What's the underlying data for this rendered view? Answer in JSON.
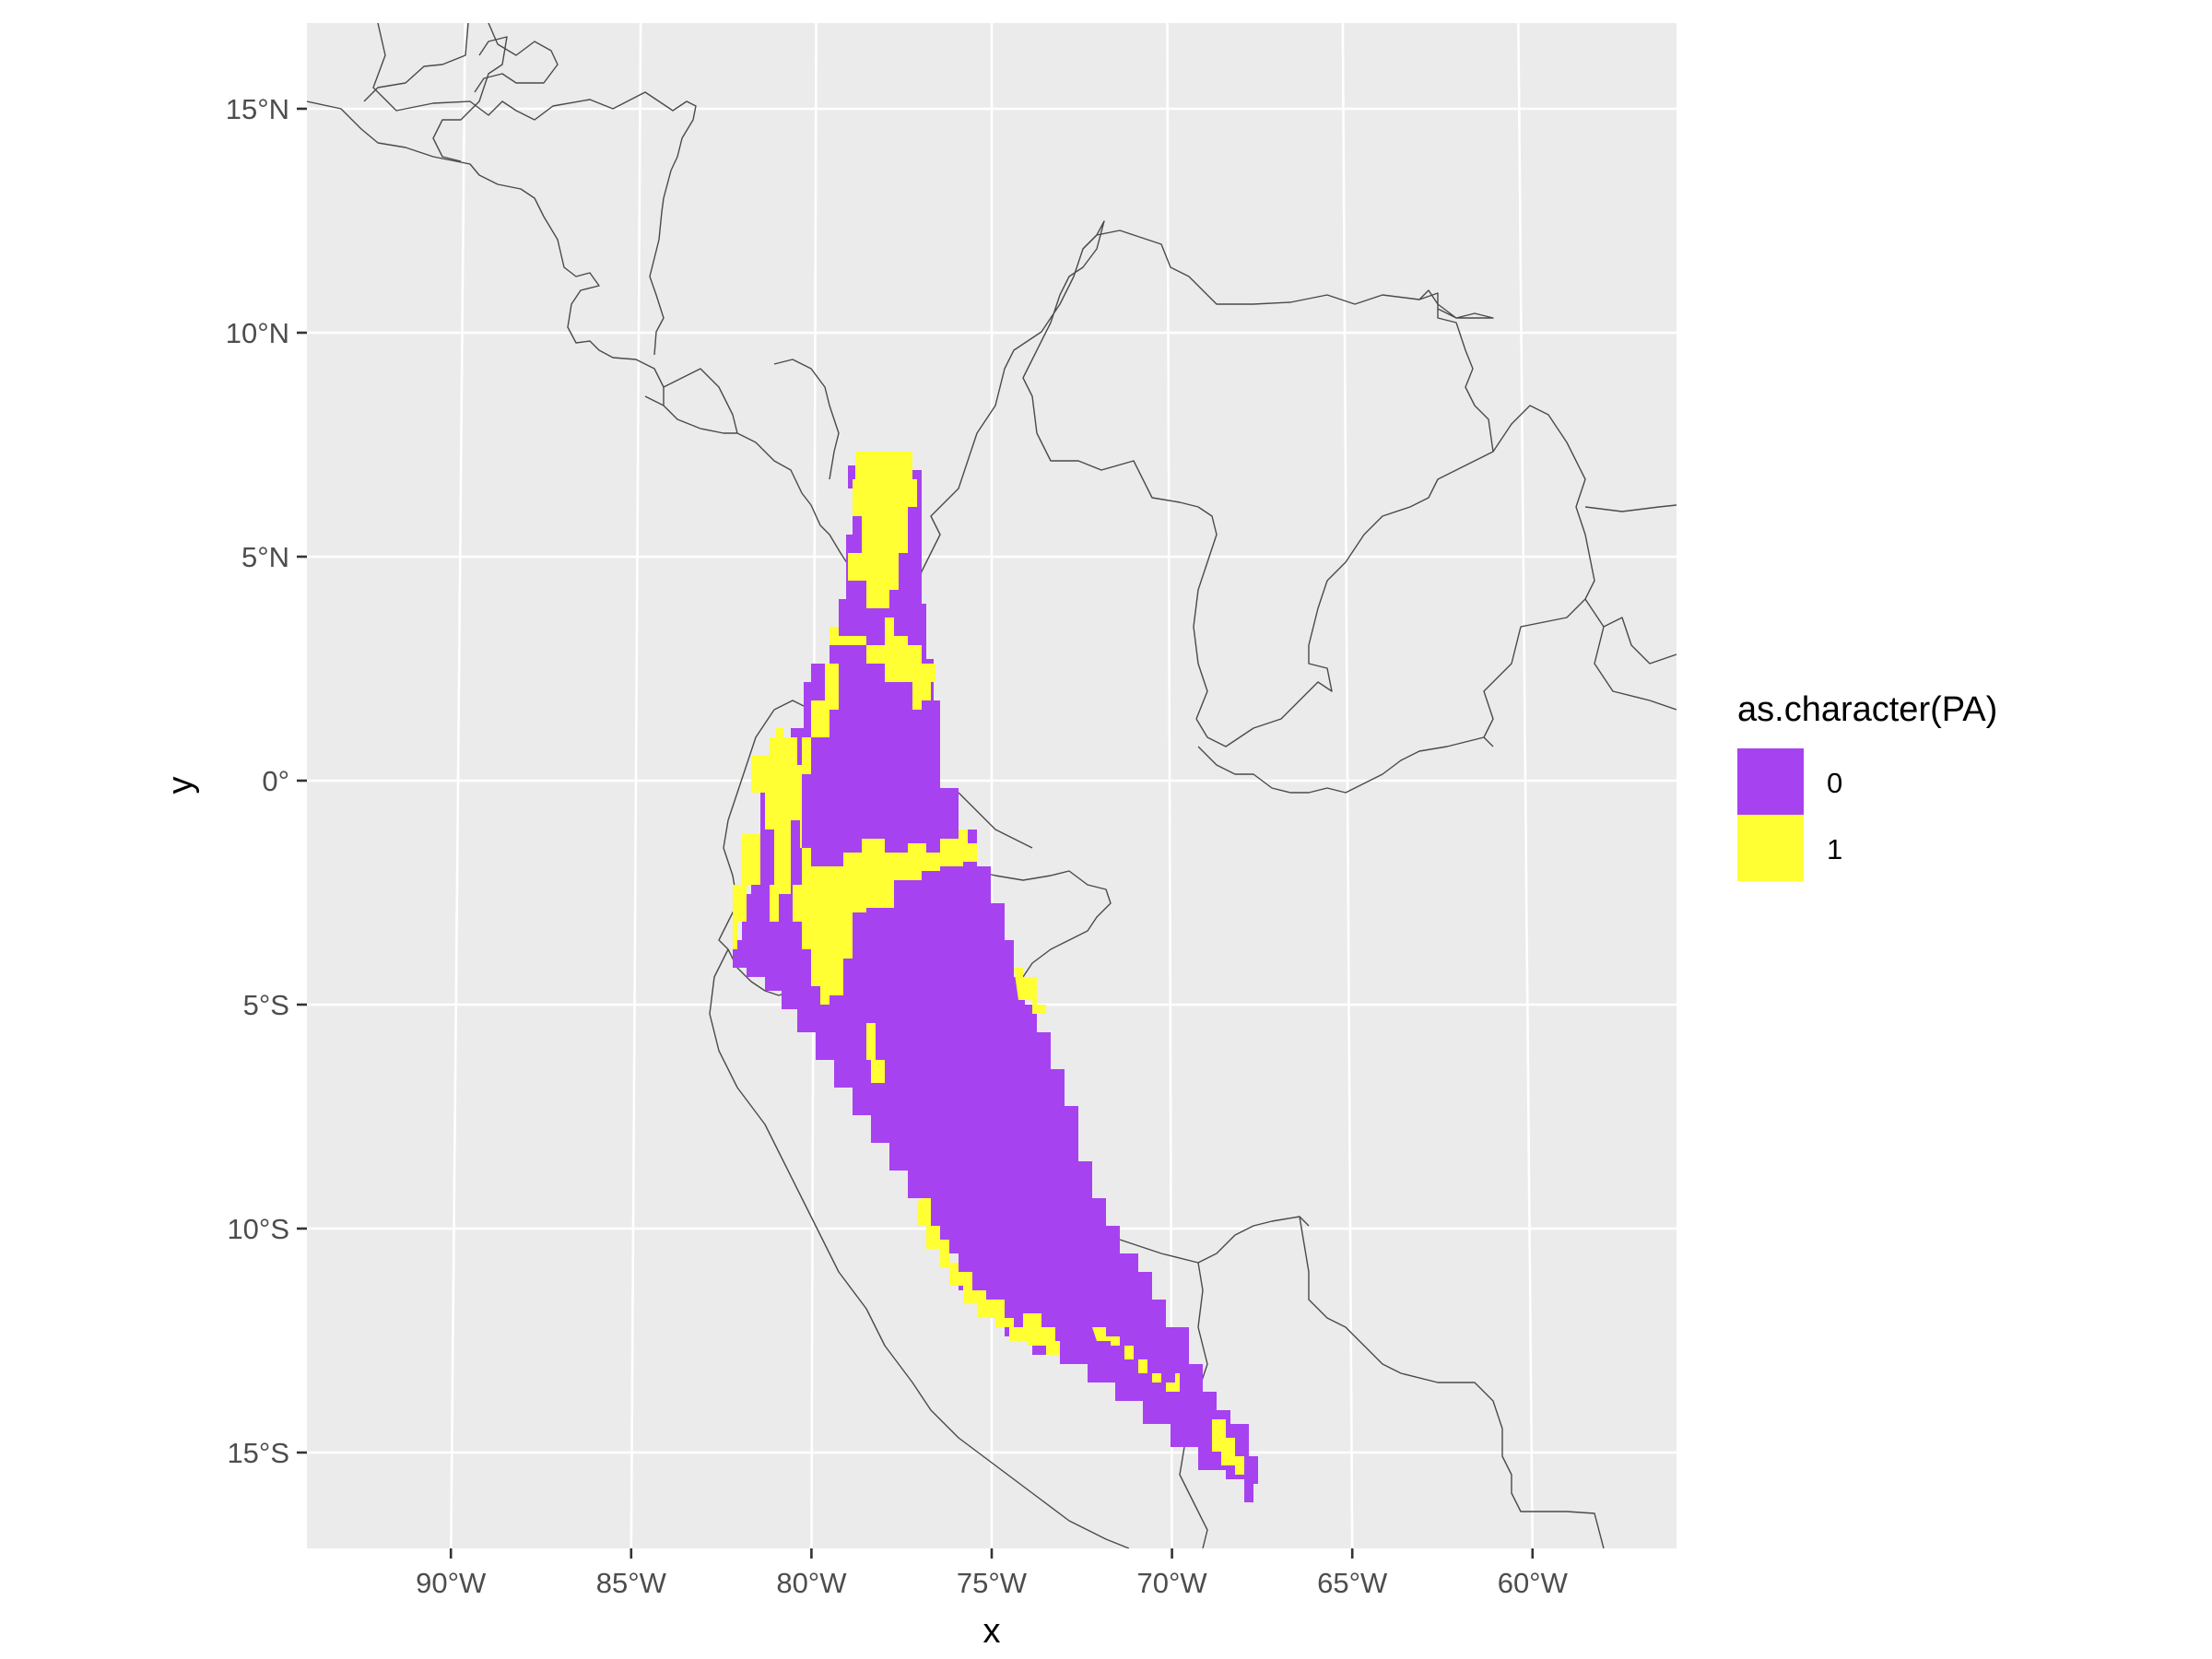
{
  "map": {
    "panel_background": "#ebebeb",
    "grid_color": "#ffffff",
    "x_axis_title": "x",
    "y_axis_title": "y",
    "x_ticks": [
      "90°W",
      "85°W",
      "80°W",
      "75°W",
      "70°W",
      "65°W",
      "60°W"
    ],
    "y_ticks": [
      "15°N",
      "10°N",
      "5°N",
      "0°",
      "5°S",
      "10°S",
      "15°S"
    ],
    "x_tick_values": [
      -90,
      -85,
      -80,
      -75,
      -70,
      -65,
      -60
    ],
    "y_tick_values": [
      15,
      10,
      5,
      0,
      -5,
      -10,
      -15
    ],
    "legend": {
      "title": "as.character(PA)",
      "items": [
        {
          "label": "0",
          "color": "#a742f0"
        },
        {
          "label": "1",
          "color": "#ffff33"
        }
      ]
    },
    "layers": [
      "country-borders",
      "presence-absence-raster"
    ],
    "raster_extent": {
      "lon_min": -83,
      "lon_max": -68,
      "lat_min": -16,
      "lat_max": 7
    }
  }
}
